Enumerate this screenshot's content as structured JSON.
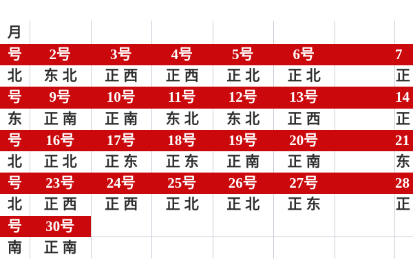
{
  "colors": {
    "row_red": "#cb090c",
    "grid_line": "#c8cdd6",
    "text_dark": "#2e2e2e",
    "text_on_red": "#ffffff"
  },
  "title_row": {
    "cells": [
      "月",
      "",
      "",
      "",
      "",
      "",
      "",
      ""
    ]
  },
  "rows": [
    {
      "style": "red",
      "kind": "day-number-row",
      "cells": [
        "号",
        "2号",
        "3号",
        "4号",
        "5号",
        "6号",
        "",
        "7"
      ]
    },
    {
      "style": "white",
      "kind": "direction-row",
      "cells": [
        "北",
        "东北",
        "正西",
        "正西",
        "正北",
        "正北",
        "",
        "正"
      ]
    },
    {
      "style": "red",
      "kind": "day-number-row",
      "cells": [
        "号",
        "9号",
        "10号",
        "11号",
        "12号",
        "13号",
        "",
        "14"
      ]
    },
    {
      "style": "white",
      "kind": "direction-row",
      "cells": [
        "东",
        "正南",
        "正南",
        "东北",
        "东北",
        "正西",
        "",
        "正"
      ]
    },
    {
      "style": "red",
      "kind": "day-number-row",
      "cells": [
        "号",
        "16号",
        "17号",
        "18号",
        "19号",
        "20号",
        "",
        "21"
      ]
    },
    {
      "style": "white",
      "kind": "direction-row",
      "cells": [
        "北",
        "正北",
        "正东",
        "正东",
        "正南",
        "正南",
        "",
        "东"
      ]
    },
    {
      "style": "red",
      "kind": "day-number-row",
      "cells": [
        "号",
        "23号",
        "24号",
        "25号",
        "26号",
        "27号",
        "",
        "28"
      ]
    },
    {
      "style": "white",
      "kind": "direction-row",
      "cells": [
        "北",
        "正西",
        "正西",
        "正北",
        "正北",
        "正东",
        "",
        "正"
      ]
    },
    {
      "style": "partial",
      "kind": "day-number-row",
      "cells": [
        "号",
        "30号",
        "",
        "",
        "",
        "",
        "",
        ""
      ]
    },
    {
      "style": "white",
      "kind": "direction-row",
      "cells": [
        "南",
        "正南",
        "",
        "",
        "",
        "",
        "",
        ""
      ]
    }
  ]
}
